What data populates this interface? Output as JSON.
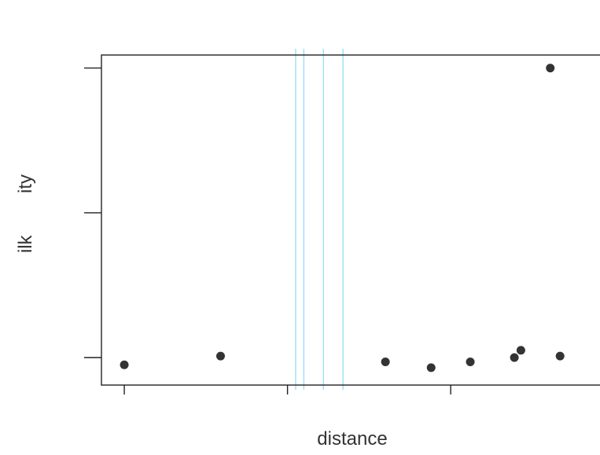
{
  "chart_data": {
    "type": "scatter",
    "title": "",
    "xlabel": "distance",
    "ylabel": "ilk        ity",
    "x": [
      0.0,
      0.59,
      1.6,
      1.88,
      2.12,
      2.39,
      2.43,
      2.61,
      2.67
    ],
    "y": [
      -0.05,
      0.01,
      -0.03,
      -0.07,
      -0.03,
      0.0,
      0.05,
      2.0,
      0.01
    ],
    "xlim": [
      -0.14,
      3.04
    ],
    "ylim": [
      -0.19,
      2.09
    ],
    "xticks": [
      0,
      1,
      2,
      3
    ],
    "yticks": [
      0,
      1,
      2
    ],
    "tick_labels_visible": false,
    "grid": false,
    "point_color": "#333333",
    "vertical_lines": {
      "x": [
        1.05,
        1.1,
        1.22,
        1.34
      ],
      "color": "#7fd7f0"
    }
  }
}
